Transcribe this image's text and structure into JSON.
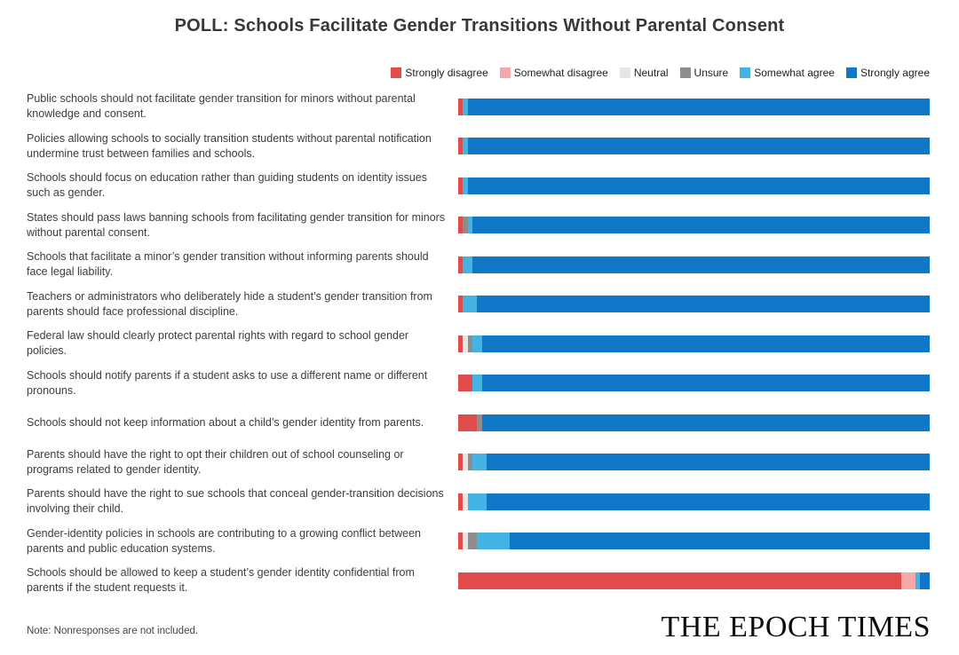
{
  "title": "POLL: Schools Facilitate Gender Transitions Without Parental Consent",
  "chart_data": {
    "type": "bar",
    "stacked": true,
    "orientation": "horizontal",
    "unit": "percent",
    "xlim": [
      0,
      100
    ],
    "grid": false,
    "legend_position": "top-right",
    "legend": [
      {
        "label": "Strongly disagree",
        "color": "#e04c4c"
      },
      {
        "label": "Somewhat disagree",
        "color": "#f6a7a7"
      },
      {
        "label": "Neutral",
        "color": "#e5e5e5"
      },
      {
        "label": "Unsure",
        "color": "#8d8d8d"
      },
      {
        "label": "Somewhat agree",
        "color": "#44b2e3"
      },
      {
        "label": "Strongly agree",
        "color": "#1178c8"
      }
    ],
    "categories": [
      "Public schools should not facilitate gender transition for minors without parental knowledge and consent.",
      "Policies allowing schools to socially transition students without parental notification undermine trust between families and schools.",
      "Schools should focus on education rather than guiding students on identity issues such as gender.",
      "States should pass laws banning schools from facilitating gender transition for minors without parental consent.",
      "Schools that facilitate a minor’s gender transition without informing parents should face legal liability.",
      "Teachers or administrators who deliberately hide a student’s gender transition from parents should face professional discipline.",
      "Federal law should clearly protect parental rights with regard to school gender policies.",
      "Schools should notify parents if a student asks to use a different name or different pronouns.",
      "Schools should not keep information about a child’s gender identity from parents.",
      "Parents should have the right to opt their children out of school counseling or programs related to gender identity.",
      "Parents should have the right to sue schools that conceal gender-transition decisions involving their child.",
      "Gender-identity policies in schools are contributing to a growing conflict between parents and public education systems.",
      "Schools should be allowed to keep a student’s gender identity confidential from parents if the student requests it."
    ],
    "series": [
      {
        "name": "Strongly disagree",
        "color": "#e04c4c",
        "values": [
          1,
          1,
          1,
          1,
          1,
          1,
          1,
          3,
          4,
          1,
          1,
          1,
          94
        ]
      },
      {
        "name": "Somewhat disagree",
        "color": "#f6a7a7",
        "values": [
          0,
          0,
          0,
          0,
          0,
          0,
          0,
          0,
          0,
          0,
          0,
          0,
          3
        ]
      },
      {
        "name": "Neutral",
        "color": "#e5e5e5",
        "values": [
          0,
          0,
          0,
          0,
          0,
          0,
          1,
          0,
          0,
          1,
          1,
          1,
          0
        ]
      },
      {
        "name": "Unsure",
        "color": "#8d8d8d",
        "values": [
          0,
          0,
          0,
          1,
          0,
          0,
          1,
          0,
          1,
          1,
          0,
          2,
          0
        ]
      },
      {
        "name": "Somewhat agree",
        "color": "#44b2e3",
        "values": [
          1,
          1,
          1,
          1,
          2,
          3,
          2,
          2,
          0,
          3,
          4,
          7,
          1
        ]
      },
      {
        "name": "Strongly agree",
        "color": "#1178c8",
        "values": [
          98,
          98,
          98,
          97,
          97,
          96,
          95,
          95,
          95,
          94,
          94,
          89,
          2
        ]
      }
    ]
  },
  "footer": {
    "note": "Note: Nonresponses are not included.",
    "brand": "THE EPOCH TIMES"
  }
}
